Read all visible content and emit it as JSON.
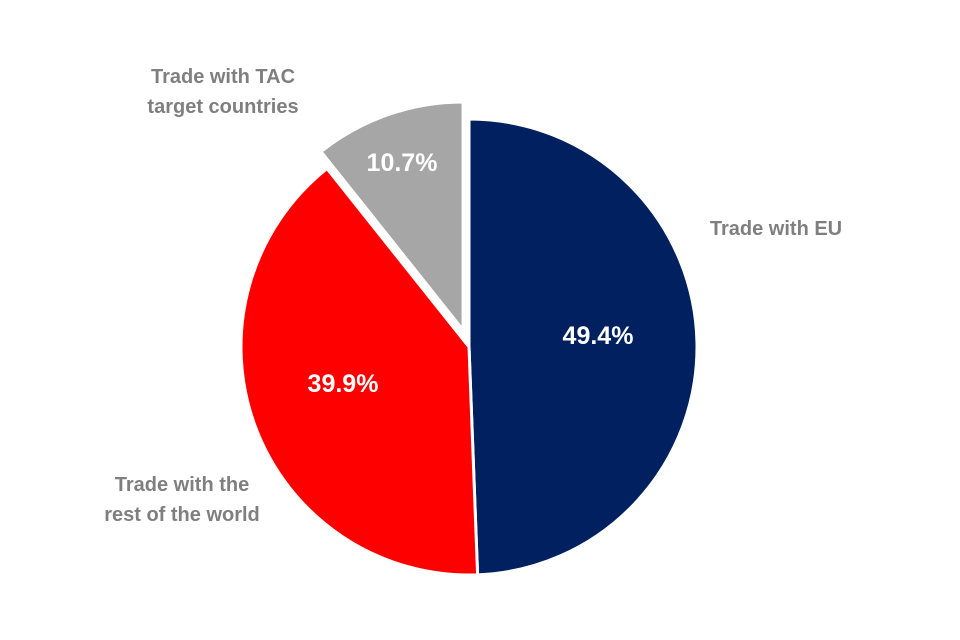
{
  "chart_data": {
    "type": "pie",
    "title": "",
    "start_angle_deg": 0,
    "direction": "clockwise",
    "slices": [
      {
        "name": "Trade with EU",
        "label_lines": [
          "Trade with EU"
        ],
        "value": 49.4,
        "value_label": "49.4%",
        "color": "#002060",
        "exploded": false
      },
      {
        "name": "Trade with the rest of the world",
        "label_lines": [
          "Trade with the",
          "rest of the world"
        ],
        "value": 39.9,
        "value_label": "39.9%",
        "color": "#ff0000",
        "exploded": false
      },
      {
        "name": "Trade with TAC target countries",
        "label_lines": [
          "Trade with TAC",
          "target countries"
        ],
        "value": 10.7,
        "value_label": "10.7%",
        "color": "#a6a6a6",
        "exploded": true
      }
    ],
    "label_color": "#7f7f7f",
    "value_label_color": "#ffffff",
    "legend": "none"
  }
}
